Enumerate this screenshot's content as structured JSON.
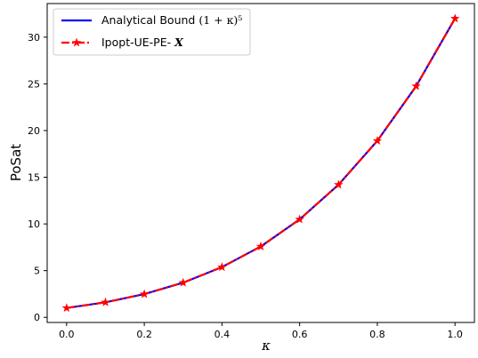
{
  "chart_data": {
    "type": "line",
    "xlabel": "κ",
    "ylabel": "PoSat",
    "xlim": [
      -0.05,
      1.05
    ],
    "ylim": [
      -0.55,
      33.6
    ],
    "xticks": [
      0.0,
      0.2,
      0.4,
      0.6,
      0.8,
      1.0
    ],
    "xtick_labels": [
      "0.0",
      "0.2",
      "0.4",
      "0.6",
      "0.8",
      "1.0"
    ],
    "yticks": [
      0,
      5,
      10,
      15,
      20,
      25,
      30
    ],
    "ytick_labels": [
      "0",
      "5",
      "10",
      "15",
      "20",
      "25",
      "30"
    ],
    "grid": false,
    "legend_position": "top-left",
    "series": [
      {
        "name": "Analytical Bound (1 + κ)^5",
        "legend_prefix": "Analytical Bound ",
        "legend_math": "(1 + κ)⁵",
        "color": "#0000ff",
        "style": "solid",
        "marker": "none",
        "x": [
          0.0,
          0.1,
          0.2,
          0.3,
          0.4,
          0.5,
          0.6,
          0.7,
          0.8,
          0.9,
          1.0
        ],
        "values": [
          1.0,
          1.61,
          2.49,
          3.71,
          5.38,
          7.59,
          10.49,
          14.2,
          18.9,
          24.76,
          32.0
        ]
      },
      {
        "name": "Ipopt-UE-PE-X",
        "legend_prefix": "Ipopt-UE-PE-",
        "legend_math": "X",
        "color": "#ff0000",
        "style": "dashdot",
        "marker": "star",
        "x": [
          0.0,
          0.1,
          0.2,
          0.3,
          0.4,
          0.5,
          0.6,
          0.7,
          0.8,
          0.9,
          1.0
        ],
        "values": [
          1.0,
          1.61,
          2.49,
          3.71,
          5.38,
          7.59,
          10.49,
          14.2,
          18.9,
          24.76,
          32.0
        ]
      }
    ]
  }
}
